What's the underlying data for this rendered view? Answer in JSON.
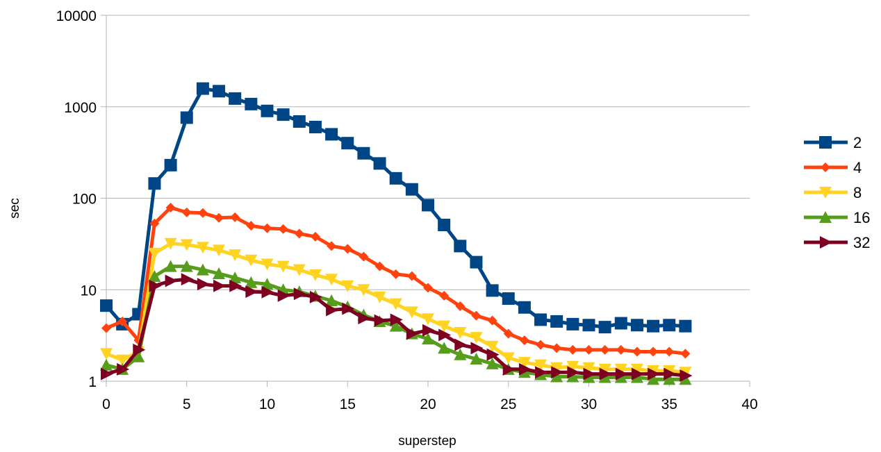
{
  "chart_data": {
    "type": "line",
    "title": "",
    "xlabel": "superstep",
    "ylabel": "sec",
    "xlim": [
      0,
      40
    ],
    "ylim": [
      1,
      10000
    ],
    "yscale": "log",
    "grid": "horizontal",
    "legend_position": "right",
    "x_ticks": [
      "0",
      "5",
      "10",
      "15",
      "20",
      "25",
      "30",
      "35",
      "40"
    ],
    "y_ticks": [
      "1",
      "10",
      "100",
      "1000",
      "10000"
    ],
    "x": [
      0,
      1,
      2,
      3,
      4,
      5,
      6,
      7,
      8,
      9,
      10,
      11,
      12,
      13,
      14,
      15,
      16,
      17,
      18,
      19,
      20,
      21,
      22,
      23,
      24,
      25,
      26,
      27,
      28,
      29,
      30,
      31,
      32,
      33,
      34,
      35,
      36
    ],
    "series": [
      {
        "name": "2",
        "color": "#004586",
        "marker": "square",
        "values": [
          6.7,
          4.2,
          5.4,
          145,
          230,
          760,
          1580,
          1480,
          1230,
          1070,
          900,
          820,
          690,
          600,
          500,
          400,
          310,
          240,
          165,
          125,
          84,
          51,
          30,
          20,
          9.8,
          8.0,
          6.4,
          4.7,
          4.5,
          4.2,
          4.1,
          3.9,
          4.3,
          4.1,
          4.0,
          4.1,
          4.0
        ]
      },
      {
        "name": "4",
        "color": "#ff420e",
        "marker": "diamond",
        "values": [
          3.8,
          4.5,
          2.8,
          53,
          79,
          70,
          69,
          61,
          62,
          50,
          47,
          46,
          41,
          38,
          30,
          28,
          23,
          18,
          14.8,
          14.1,
          10.5,
          8.6,
          6.6,
          5.2,
          4.6,
          3.3,
          2.8,
          2.5,
          2.3,
          2.2,
          2.2,
          2.2,
          2.2,
          2.1,
          2.1,
          2.1,
          2.0
        ]
      },
      {
        "name": "8",
        "color": "#ffd320",
        "marker": "triangle-down",
        "values": [
          2.0,
          1.7,
          2.1,
          25,
          32,
          31,
          29,
          27,
          24,
          21,
          19,
          18,
          16.5,
          14.5,
          13,
          11,
          10,
          8.3,
          7,
          5.7,
          4.8,
          4.0,
          3.4,
          3.0,
          2.4,
          1.8,
          1.6,
          1.5,
          1.4,
          1.45,
          1.4,
          1.35,
          1.35,
          1.35,
          1.3,
          1.3,
          1.25
        ]
      },
      {
        "name": "16",
        "color": "#579d1c",
        "marker": "triangle-up",
        "values": [
          1.5,
          1.35,
          1.85,
          14,
          18,
          18,
          16.5,
          15,
          13.5,
          12,
          11.5,
          10,
          9.5,
          8.5,
          7.6,
          6.5,
          5.3,
          4.5,
          4.0,
          3.3,
          2.9,
          2.3,
          1.95,
          1.75,
          1.55,
          1.35,
          1.25,
          1.18,
          1.12,
          1.12,
          1.1,
          1.1,
          1.1,
          1.1,
          1.05,
          1.05,
          1.05
        ]
      },
      {
        "name": "32",
        "color": "#7e0021",
        "marker": "triangle-right",
        "values": [
          1.2,
          1.35,
          2.2,
          11,
          12.5,
          13,
          11.5,
          11,
          11,
          9.5,
          9.4,
          8.6,
          9,
          8.3,
          6,
          6.2,
          4.9,
          4.6,
          4.7,
          3.3,
          3.6,
          3.2,
          2.5,
          2.3,
          1.95,
          1.35,
          1.35,
          1.25,
          1.25,
          1.25,
          1.2,
          1.2,
          1.2,
          1.2,
          1.2,
          1.2,
          1.15
        ]
      }
    ]
  }
}
